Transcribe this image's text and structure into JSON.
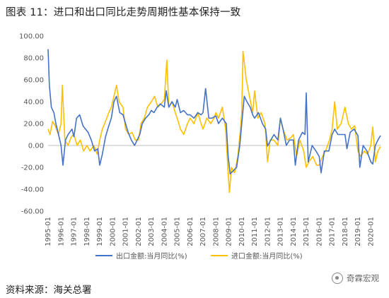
{
  "figure_title": "图表 11：进口和出口同比走势周期性基本保持一致",
  "source_text": "资料来源：海关总署",
  "brand_name": "奇霖宏观",
  "brand_icon": "wechat-official-account-icon",
  "chart_data": {
    "type": "line",
    "title": "",
    "xlabel": "",
    "ylabel": "",
    "ylim": [
      -60,
      100
    ],
    "yticks": [
      "100.00",
      "80.00",
      "60.00",
      "40.00",
      "20.00",
      "0.00",
      "-20.00",
      "-40.00",
      "-60.00"
    ],
    "xticks": [
      "1995-01",
      "1996-01",
      "1997-01",
      "1998-01",
      "1999-01",
      "2000-01",
      "2001-01",
      "2002-01",
      "2003-01",
      "2004-01",
      "2005-01",
      "2006-01",
      "2007-01",
      "2008-01",
      "2009-01",
      "2010-01",
      "2011-01",
      "2012-01",
      "2013-01",
      "2014-01",
      "2015-01",
      "2016-01",
      "2017-01",
      "2018-01",
      "2019-01",
      "2020-01"
    ],
    "x_range": [
      1995.0,
      2020.75
    ],
    "grid": false,
    "legend_position": "bottom",
    "series": [
      {
        "name": "出口金额:当月同比(%)",
        "color": "#4472C4",
        "points": [
          [
            1995.0,
            88
          ],
          [
            1995.1,
            55
          ],
          [
            1995.25,
            35
          ],
          [
            1995.45,
            30
          ],
          [
            1995.6,
            20
          ],
          [
            1995.85,
            8
          ],
          [
            1996.0,
            0
          ],
          [
            1996.15,
            -18
          ],
          [
            1996.35,
            5
          ],
          [
            1996.55,
            10
          ],
          [
            1996.85,
            15
          ],
          [
            1997.0,
            8
          ],
          [
            1997.2,
            25
          ],
          [
            1997.45,
            28
          ],
          [
            1997.7,
            18
          ],
          [
            1997.9,
            15
          ],
          [
            1998.1,
            12
          ],
          [
            1998.35,
            5
          ],
          [
            1998.6,
            -5
          ],
          [
            1998.85,
            -3
          ],
          [
            1999.0,
            -18
          ],
          [
            1999.2,
            -8
          ],
          [
            1999.45,
            8
          ],
          [
            1999.7,
            18
          ],
          [
            1999.9,
            25
          ],
          [
            2000.1,
            40
          ],
          [
            2000.3,
            45
          ],
          [
            2000.55,
            30
          ],
          [
            2000.8,
            28
          ],
          [
            2001.0,
            20
          ],
          [
            2001.2,
            12
          ],
          [
            2001.45,
            5
          ],
          [
            2001.7,
            0
          ],
          [
            2001.9,
            5
          ],
          [
            2002.1,
            10
          ],
          [
            2002.3,
            20
          ],
          [
            2002.55,
            25
          ],
          [
            2002.8,
            28
          ],
          [
            2003.0,
            32
          ],
          [
            2003.2,
            30
          ],
          [
            2003.45,
            35
          ],
          [
            2003.7,
            38
          ],
          [
            2004.0,
            35
          ],
          [
            2004.15,
            50
          ],
          [
            2004.35,
            35
          ],
          [
            2004.6,
            40
          ],
          [
            2004.85,
            35
          ],
          [
            2005.0,
            42
          ],
          [
            2005.25,
            30
          ],
          [
            2005.5,
            32
          ],
          [
            2005.8,
            28
          ],
          [
            2006.0,
            28
          ],
          [
            2006.3,
            25
          ],
          [
            2006.6,
            30
          ],
          [
            2006.85,
            28
          ],
          [
            2007.0,
            30
          ],
          [
            2007.2,
            52
          ],
          [
            2007.45,
            25
          ],
          [
            2007.7,
            25
          ],
          [
            2008.0,
            27
          ],
          [
            2008.2,
            20
          ],
          [
            2008.5,
            25
          ],
          [
            2008.8,
            20
          ],
          [
            2008.95,
            -10
          ],
          [
            2009.1,
            -26
          ],
          [
            2009.35,
            -23
          ],
          [
            2009.6,
            -20
          ],
          [
            2009.85,
            0
          ],
          [
            2010.0,
            20
          ],
          [
            2010.2,
            45
          ],
          [
            2010.4,
            40
          ],
          [
            2010.65,
            35
          ],
          [
            2010.85,
            28
          ],
          [
            2011.0,
            25
          ],
          [
            2011.3,
            30
          ],
          [
            2011.6,
            20
          ],
          [
            2011.85,
            15
          ],
          [
            2012.0,
            -0.5
          ],
          [
            2012.25,
            5
          ],
          [
            2012.5,
            10
          ],
          [
            2012.8,
            5
          ],
          [
            2013.0,
            25
          ],
          [
            2013.2,
            15
          ],
          [
            2013.45,
            0
          ],
          [
            2013.7,
            5
          ],
          [
            2014.0,
            5
          ],
          [
            2014.15,
            -18
          ],
          [
            2014.4,
            5
          ],
          [
            2014.7,
            12
          ],
          [
            2014.9,
            10
          ],
          [
            2015.0,
            48
          ],
          [
            2015.15,
            -15
          ],
          [
            2015.45,
            0
          ],
          [
            2015.75,
            -5
          ],
          [
            2016.0,
            -10
          ],
          [
            2016.15,
            -25
          ],
          [
            2016.4,
            -5
          ],
          [
            2016.75,
            -5
          ],
          [
            2017.0,
            10
          ],
          [
            2017.2,
            15
          ],
          [
            2017.45,
            10
          ],
          [
            2017.75,
            10
          ],
          [
            2018.0,
            10
          ],
          [
            2018.15,
            -3
          ],
          [
            2018.4,
            12
          ],
          [
            2018.7,
            15
          ],
          [
            2019.0,
            9
          ],
          [
            2019.15,
            -20
          ],
          [
            2019.4,
            0
          ],
          [
            2019.7,
            -5
          ],
          [
            2020.0,
            -15
          ],
          [
            2020.15,
            -17
          ],
          [
            2020.35,
            0
          ],
          [
            2020.55,
            5
          ],
          [
            2020.75,
            9
          ]
        ]
      },
      {
        "name": "进口金额:当月同比(%)",
        "color": "#FFC000",
        "points": [
          [
            1995.0,
            15
          ],
          [
            1995.15,
            10
          ],
          [
            1995.35,
            22
          ],
          [
            1995.55,
            18
          ],
          [
            1995.8,
            10
          ],
          [
            1996.0,
            20
          ],
          [
            1996.1,
            55
          ],
          [
            1996.3,
            5
          ],
          [
            1996.55,
            0
          ],
          [
            1996.8,
            8
          ],
          [
            1997.0,
            10
          ],
          [
            1997.25,
            0
          ],
          [
            1997.5,
            5
          ],
          [
            1997.75,
            -5
          ],
          [
            1998.0,
            0
          ],
          [
            1998.25,
            -5
          ],
          [
            1998.55,
            0
          ],
          [
            1998.8,
            -8
          ],
          [
            1999.0,
            5
          ],
          [
            1999.2,
            15
          ],
          [
            1999.45,
            22
          ],
          [
            1999.7,
            30
          ],
          [
            1999.9,
            35
          ],
          [
            2000.1,
            45
          ],
          [
            2000.3,
            55
          ],
          [
            2000.5,
            40
          ],
          [
            2000.8,
            35
          ],
          [
            2001.0,
            15
          ],
          [
            2001.25,
            10
          ],
          [
            2001.5,
            12
          ],
          [
            2001.75,
            5
          ],
          [
            2002.0,
            5
          ],
          [
            2002.2,
            20
          ],
          [
            2002.45,
            25
          ],
          [
            2002.7,
            35
          ],
          [
            2003.0,
            40
          ],
          [
            2003.25,
            45
          ],
          [
            2003.5,
            35
          ],
          [
            2003.75,
            38
          ],
          [
            2004.0,
            42
          ],
          [
            2004.2,
            78
          ],
          [
            2004.35,
            35
          ],
          [
            2004.6,
            40
          ],
          [
            2004.85,
            30
          ],
          [
            2005.0,
            25
          ],
          [
            2005.25,
            15
          ],
          [
            2005.5,
            10
          ],
          [
            2005.8,
            20
          ],
          [
            2006.0,
            25
          ],
          [
            2006.3,
            20
          ],
          [
            2006.6,
            30
          ],
          [
            2006.85,
            20
          ],
          [
            2007.0,
            15
          ],
          [
            2007.3,
            25
          ],
          [
            2007.6,
            20
          ],
          [
            2007.85,
            25
          ],
          [
            2008.0,
            30
          ],
          [
            2008.2,
            25
          ],
          [
            2008.5,
            35
          ],
          [
            2008.75,
            15
          ],
          [
            2008.95,
            -25
          ],
          [
            2009.05,
            -43
          ],
          [
            2009.2,
            -20
          ],
          [
            2009.45,
            -25
          ],
          [
            2009.7,
            -10
          ],
          [
            2009.9,
            15
          ],
          [
            2010.0,
            30
          ],
          [
            2010.1,
            86
          ],
          [
            2010.35,
            60
          ],
          [
            2010.6,
            45
          ],
          [
            2010.85,
            30
          ],
          [
            2011.0,
            50
          ],
          [
            2011.25,
            25
          ],
          [
            2011.5,
            30
          ],
          [
            2011.8,
            20
          ],
          [
            2012.0,
            -15
          ],
          [
            2012.2,
            5
          ],
          [
            2012.5,
            5
          ],
          [
            2012.8,
            0
          ],
          [
            2013.0,
            25
          ],
          [
            2013.2,
            15
          ],
          [
            2013.5,
            5
          ],
          [
            2013.8,
            7
          ],
          [
            2014.0,
            10
          ],
          [
            2014.25,
            -10
          ],
          [
            2014.5,
            5
          ],
          [
            2014.8,
            -5
          ],
          [
            2015.0,
            -20
          ],
          [
            2015.2,
            -15
          ],
          [
            2015.5,
            -10
          ],
          [
            2015.8,
            -18
          ],
          [
            2016.0,
            -18
          ],
          [
            2016.25,
            -10
          ],
          [
            2016.5,
            -5
          ],
          [
            2016.8,
            5
          ],
          [
            2017.0,
            15
          ],
          [
            2017.2,
            40
          ],
          [
            2017.4,
            15
          ],
          [
            2017.7,
            20
          ],
          [
            2018.0,
            35
          ],
          [
            2018.25,
            20
          ],
          [
            2018.5,
            15
          ],
          [
            2018.75,
            18
          ],
          [
            2019.0,
            -5
          ],
          [
            2019.2,
            -10
          ],
          [
            2019.5,
            -5
          ],
          [
            2019.75,
            -8
          ],
          [
            2020.0,
            0
          ],
          [
            2020.15,
            17
          ],
          [
            2020.35,
            -15
          ],
          [
            2020.55,
            -5
          ],
          [
            2020.75,
            -1
          ]
        ]
      }
    ]
  }
}
